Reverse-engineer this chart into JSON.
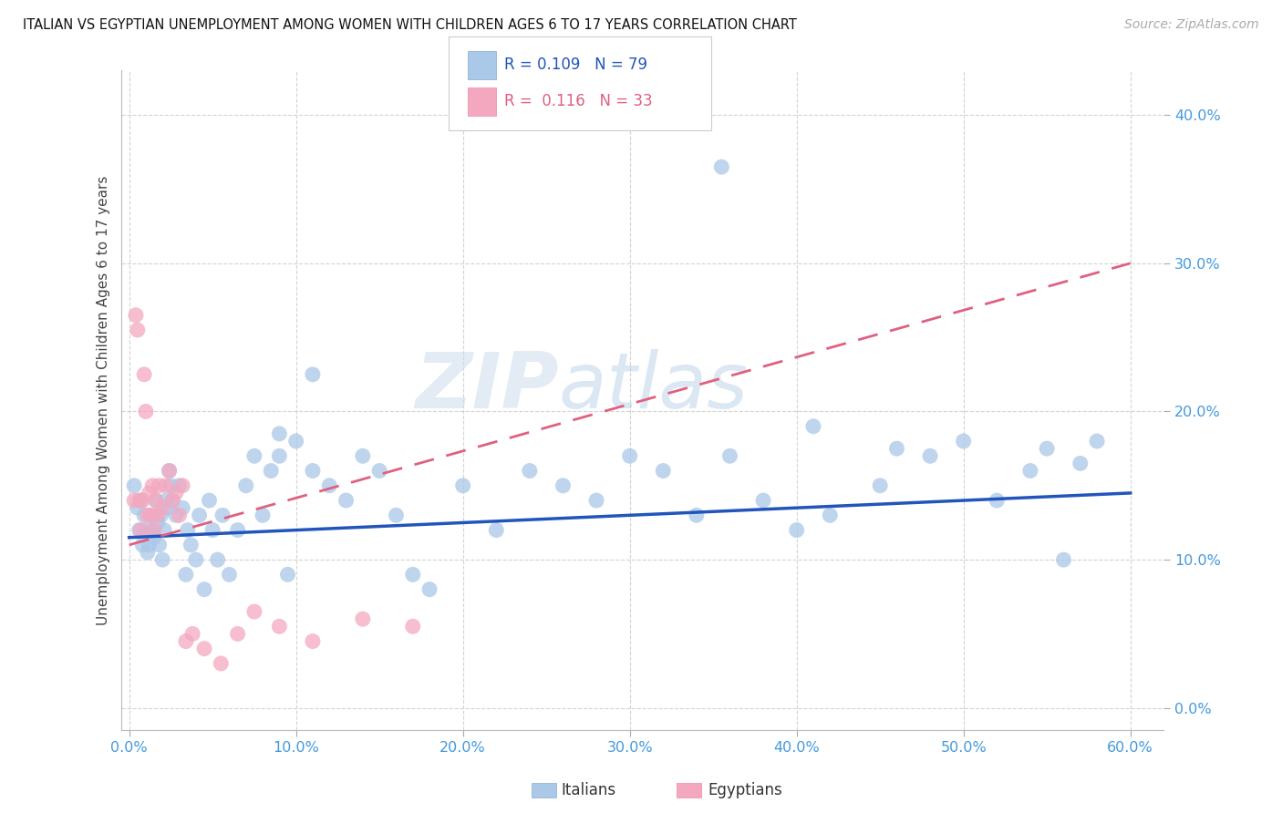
{
  "title": "ITALIAN VS EGYPTIAN UNEMPLOYMENT AMONG WOMEN WITH CHILDREN AGES 6 TO 17 YEARS CORRELATION CHART",
  "source": "Source: ZipAtlas.com",
  "ylabel": "Unemployment Among Women with Children Ages 6 to 17 years",
  "xlim": [
    -0.5,
    62
  ],
  "ylim": [
    -1.5,
    43
  ],
  "ytick_vals": [
    0,
    10,
    20,
    30,
    40
  ],
  "xtick_vals": [
    0,
    10,
    20,
    30,
    40,
    50,
    60
  ],
  "watermark_line1": "ZIP",
  "watermark_line2": "atlas",
  "legend_italian_r": "0.109",
  "legend_italian_n": "79",
  "legend_egyptian_r": "0.116",
  "legend_egyptian_n": "33",
  "italian_color": "#aac8e8",
  "egyptian_color": "#f4a8c0",
  "italian_line_color": "#2255bb",
  "egyptian_line_color": "#e06080",
  "background_color": "#ffffff",
  "grid_color": "#cccccc",
  "axis_label_color": "#4499dd",
  "title_color": "#111111",
  "source_color": "#aaaaaa",
  "watermark_color_zip": "#c5d8ee",
  "watermark_color_atlas": "#c5d8ee",
  "italian_x": [
    0.3,
    0.5,
    0.6,
    0.7,
    0.8,
    0.9,
    1.0,
    1.1,
    1.2,
    1.3,
    1.4,
    1.5,
    1.6,
    1.7,
    1.8,
    1.9,
    2.0,
    2.1,
    2.2,
    2.3,
    2.4,
    2.5,
    2.6,
    2.8,
    3.0,
    3.2,
    3.4,
    3.5,
    3.7,
    4.0,
    4.2,
    4.5,
    4.8,
    5.0,
    5.3,
    5.6,
    6.0,
    6.5,
    7.0,
    7.5,
    8.0,
    8.5,
    9.0,
    9.5,
    10.0,
    11.0,
    12.0,
    13.0,
    14.0,
    15.0,
    16.0,
    17.0,
    18.0,
    20.0,
    22.0,
    24.0,
    26.0,
    28.0,
    30.0,
    32.0,
    34.0,
    35.5,
    36.0,
    38.0,
    40.0,
    42.0,
    45.0,
    48.0,
    50.0,
    52.0,
    54.0,
    56.0,
    58.0,
    41.0,
    46.0,
    55.0,
    57.0,
    9.0,
    11.0
  ],
  "italian_y": [
    15.0,
    13.5,
    12.0,
    14.0,
    11.0,
    13.0,
    12.0,
    10.5,
    11.0,
    13.0,
    12.0,
    11.5,
    14.0,
    12.5,
    11.0,
    13.0,
    10.0,
    12.0,
    14.0,
    13.5,
    16.0,
    15.0,
    14.0,
    13.0,
    15.0,
    13.5,
    9.0,
    12.0,
    11.0,
    10.0,
    13.0,
    8.0,
    14.0,
    12.0,
    10.0,
    13.0,
    9.0,
    12.0,
    15.0,
    17.0,
    13.0,
    16.0,
    17.0,
    9.0,
    18.0,
    16.0,
    15.0,
    14.0,
    17.0,
    16.0,
    13.0,
    9.0,
    8.0,
    15.0,
    12.0,
    16.0,
    15.0,
    14.0,
    17.0,
    16.0,
    13.0,
    36.5,
    17.0,
    14.0,
    12.0,
    13.0,
    15.0,
    17.0,
    18.0,
    14.0,
    16.0,
    10.0,
    18.0,
    19.0,
    17.5,
    17.5,
    16.5,
    18.5,
    22.5
  ],
  "egyptian_x": [
    0.3,
    0.4,
    0.5,
    0.6,
    0.7,
    0.8,
    0.9,
    1.0,
    1.1,
    1.2,
    1.3,
    1.4,
    1.5,
    1.6,
    1.7,
    1.8,
    2.0,
    2.2,
    2.4,
    2.6,
    2.8,
    3.0,
    3.2,
    3.4,
    3.8,
    4.5,
    5.5,
    6.5,
    7.5,
    9.0,
    11.0,
    14.0,
    17.0
  ],
  "egyptian_y": [
    14.0,
    26.5,
    25.5,
    14.0,
    12.0,
    14.0,
    22.5,
    20.0,
    13.0,
    14.5,
    13.0,
    15.0,
    12.0,
    14.0,
    13.0,
    15.0,
    13.5,
    15.0,
    16.0,
    14.0,
    14.5,
    13.0,
    15.0,
    4.5,
    5.0,
    4.0,
    3.0,
    5.0,
    6.5,
    5.5,
    4.5,
    6.0,
    5.5
  ],
  "it_line_x0": 0,
  "it_line_x1": 60,
  "it_line_y0": 11.5,
  "it_line_y1": 14.5,
  "eg_line_x0": 0,
  "eg_line_x1": 60,
  "eg_line_y0": 11.0,
  "eg_line_y1": 30.0
}
